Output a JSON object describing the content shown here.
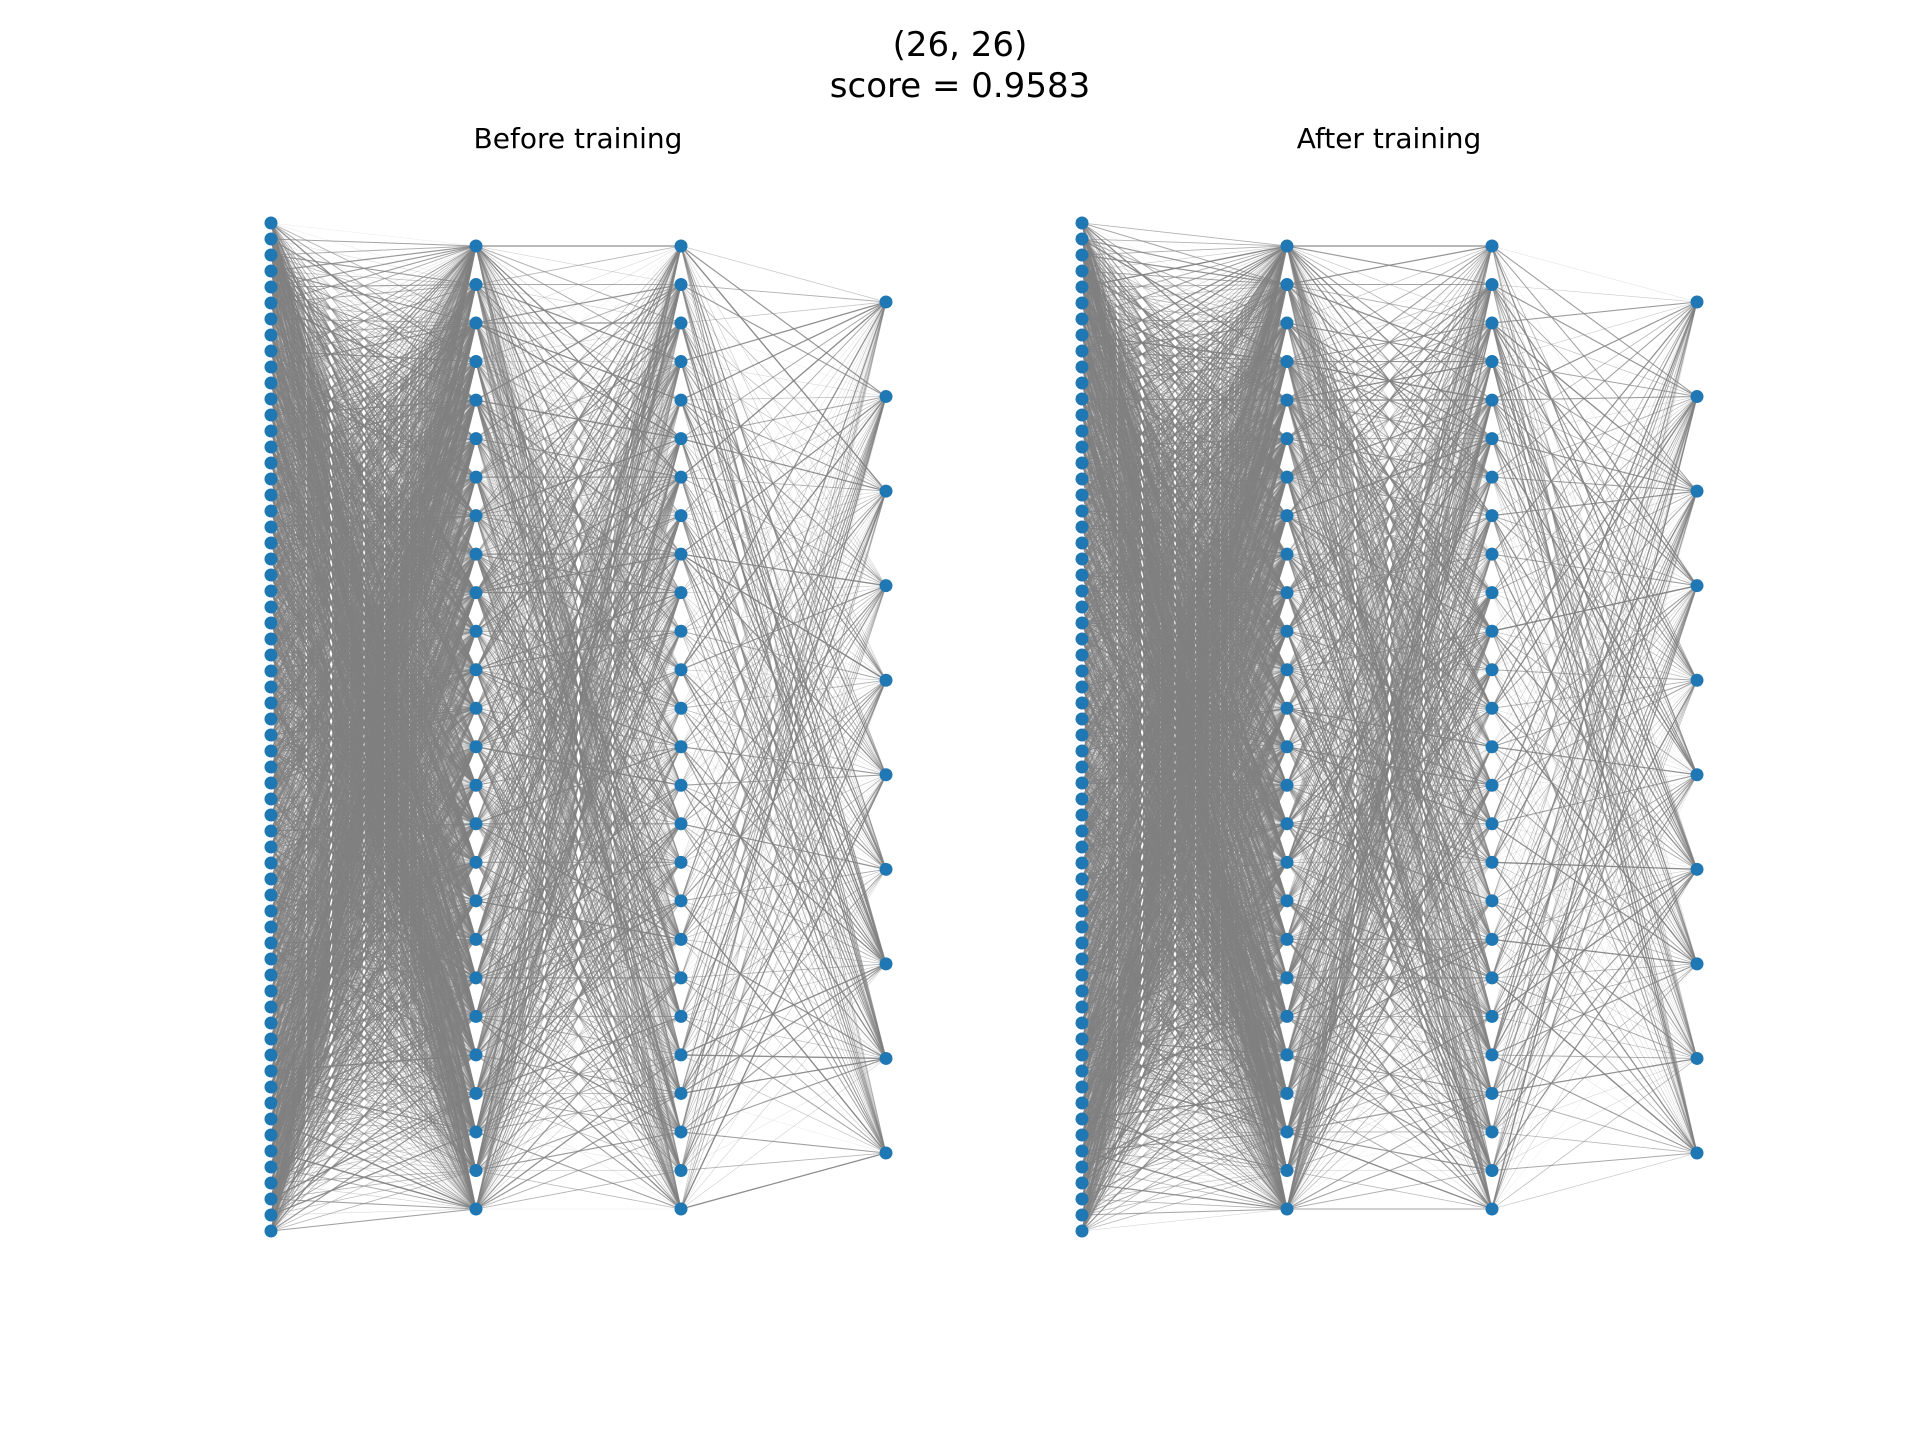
{
  "figure": {
    "title_line1": "(26, 26)",
    "title_line2": "score = 0.9583"
  },
  "colors": {
    "node": "#1f77b4",
    "edge": "#808080",
    "background": "#ffffff"
  },
  "chart_data": [
    {
      "type": "network",
      "title": "Before training",
      "layer_sizes": [
        64,
        26,
        26,
        10
      ],
      "state": "before"
    },
    {
      "type": "network",
      "title": "After training",
      "layer_sizes": [
        64,
        26,
        26,
        10
      ],
      "state": "after"
    }
  ]
}
